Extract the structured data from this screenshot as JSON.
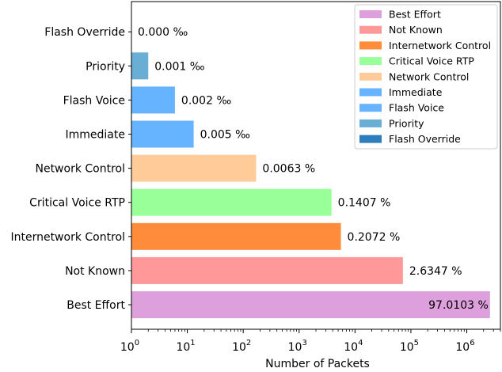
{
  "chart_data": {
    "type": "bar",
    "orientation": "horizontal",
    "xscale": "log",
    "xlim": [
      1,
      4000000
    ],
    "xlabel": "Number of Packets",
    "ylabel": "",
    "title": "",
    "grid": false,
    "legend_position": "top-right",
    "categories": [
      "Best Effort",
      "Not Known",
      "Internetwork Control",
      "Critical Voice RTP",
      "Network Control",
      "Immediate",
      "Flash Voice",
      "Priority",
      "Flash Override"
    ],
    "values": [
      2600000,
      72000,
      5600,
      3800,
      170,
      13,
      6,
      2,
      1
    ],
    "value_labels": [
      "97.0103 %",
      "2.6347 %",
      "0.2072 %",
      "0.1407 %",
      "0.0063 %",
      "0.005 ‰",
      "0.002 ‰",
      "0.001 ‰",
      "0.000 ‰"
    ],
    "colors": [
      "#dda0dd",
      "#ff9999",
      "#ff8c3a",
      "#99ff99",
      "#ffcc99",
      "#66b3ff",
      "#66b3ff",
      "#6aaed6",
      "#2f7ebc"
    ],
    "x_ticks": [
      {
        "base": "10",
        "exp": "0",
        "value": 1
      },
      {
        "base": "10",
        "exp": "1",
        "value": 10
      },
      {
        "base": "10",
        "exp": "2",
        "value": 100
      },
      {
        "base": "10",
        "exp": "3",
        "value": 1000
      },
      {
        "base": "10",
        "exp": "4",
        "value": 10000
      },
      {
        "base": "10",
        "exp": "5",
        "value": 100000
      },
      {
        "base": "10",
        "exp": "6",
        "value": 1000000
      }
    ],
    "legend": [
      {
        "label": "Best Effort",
        "color": "#dda0dd"
      },
      {
        "label": "Not Known",
        "color": "#ff9999"
      },
      {
        "label": "Internetwork Control",
        "color": "#ff8c3a"
      },
      {
        "label": "Critical Voice RTP",
        "color": "#99ff99"
      },
      {
        "label": "Network Control",
        "color": "#ffcc99"
      },
      {
        "label": "Immediate",
        "color": "#66b3ff"
      },
      {
        "label": "Flash Voice",
        "color": "#66b3ff"
      },
      {
        "label": "Priority",
        "color": "#6aaed6"
      },
      {
        "label": "Flash Override",
        "color": "#2f7ebc"
      }
    ]
  }
}
